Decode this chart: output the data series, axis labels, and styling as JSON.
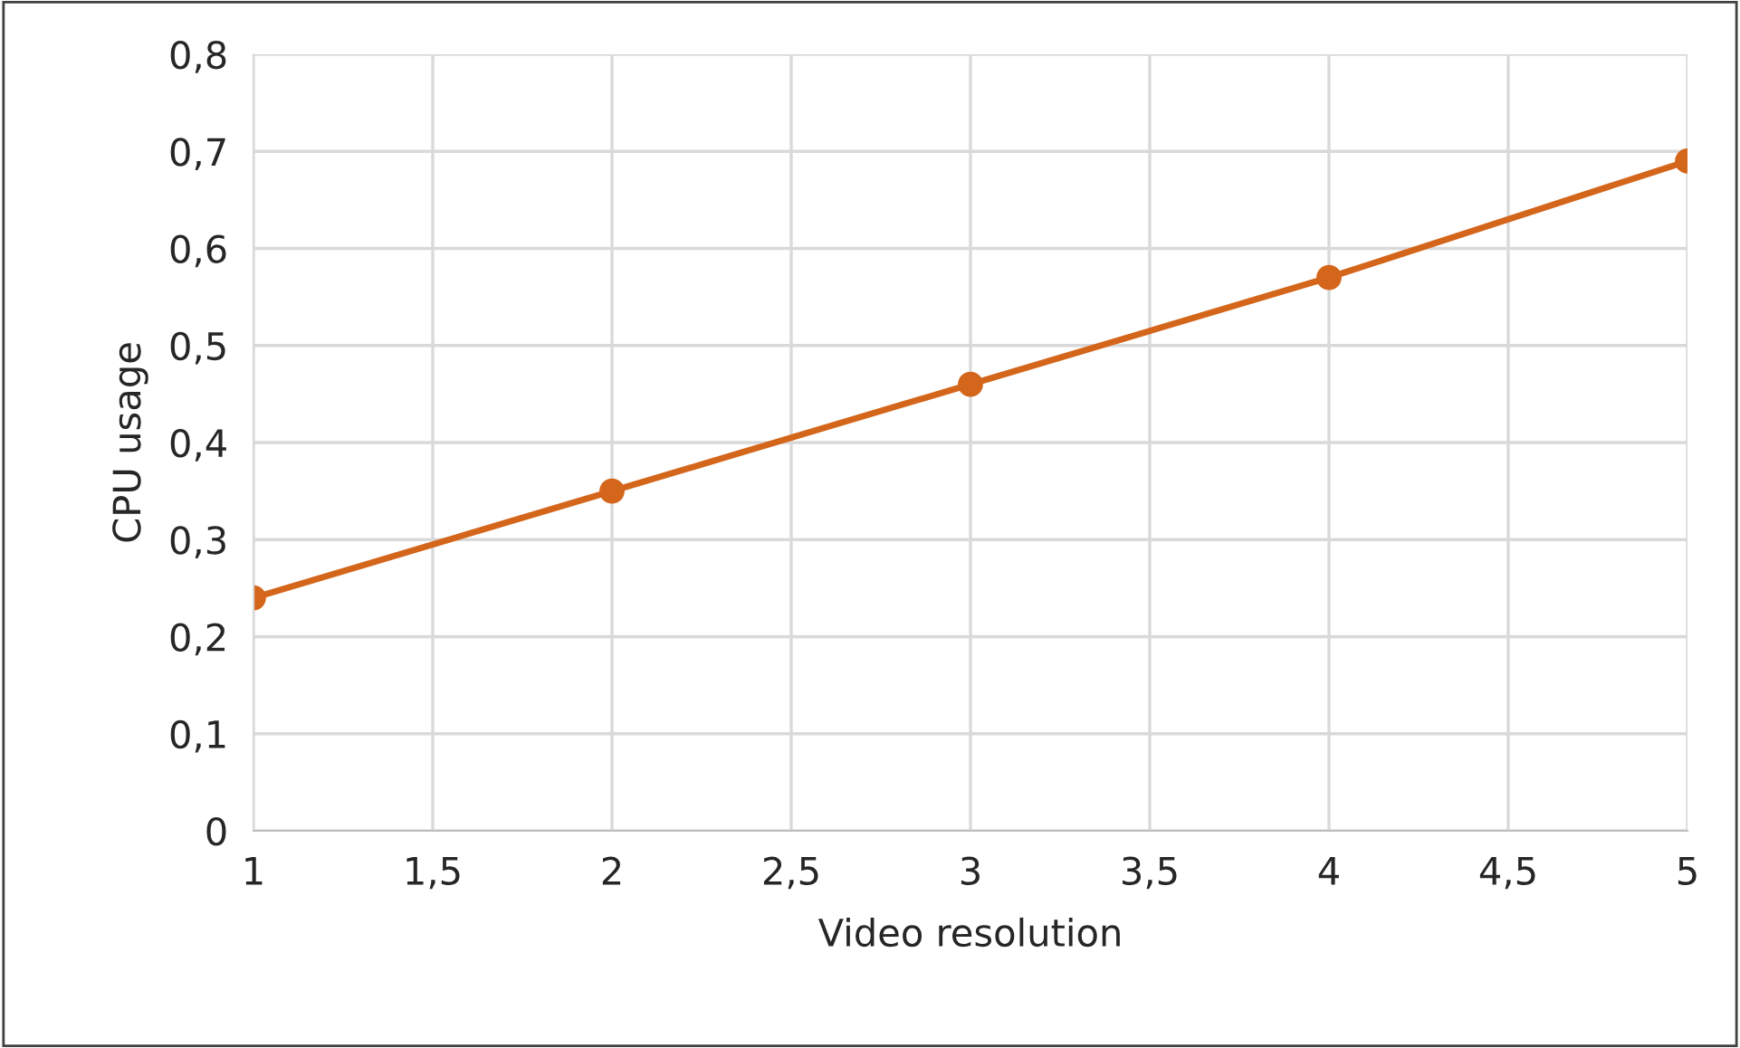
{
  "chart_data": {
    "type": "line",
    "xlabel": "Video resolution",
    "ylabel": "CPU usage",
    "x": [
      1,
      2,
      3,
      4,
      5
    ],
    "series": [
      {
        "color": "#d4661c",
        "values": [
          0.24,
          0.35,
          0.46,
          0.57,
          0.69
        ]
      }
    ],
    "xlim": [
      1,
      5
    ],
    "xticks": [
      1,
      {
        "value": 1.5,
        "label": "1,5"
      },
      2,
      {
        "value": 2.5,
        "label": "2,5"
      },
      3,
      {
        "value": 3.5,
        "label": "3,5"
      },
      4,
      {
        "value": 4.5,
        "label": "4,5"
      },
      5
    ],
    "ylim": [
      0,
      0.8
    ],
    "yticks": [
      0,
      {
        "value": 0.1,
        "label": "0,1"
      },
      {
        "value": 0.2,
        "label": "0,2"
      },
      {
        "value": 0.3,
        "label": "0,3"
      },
      {
        "value": 0.4,
        "label": "0,4"
      },
      {
        "value": 0.5,
        "label": "0,5"
      },
      {
        "value": 0.6,
        "label": "0,6"
      },
      {
        "value": 0.7,
        "label": "0,7"
      },
      {
        "value": 0.8,
        "label": "0,8"
      }
    ],
    "grid": true,
    "marker": "circle",
    "line_style": "solid",
    "legend": false
  }
}
